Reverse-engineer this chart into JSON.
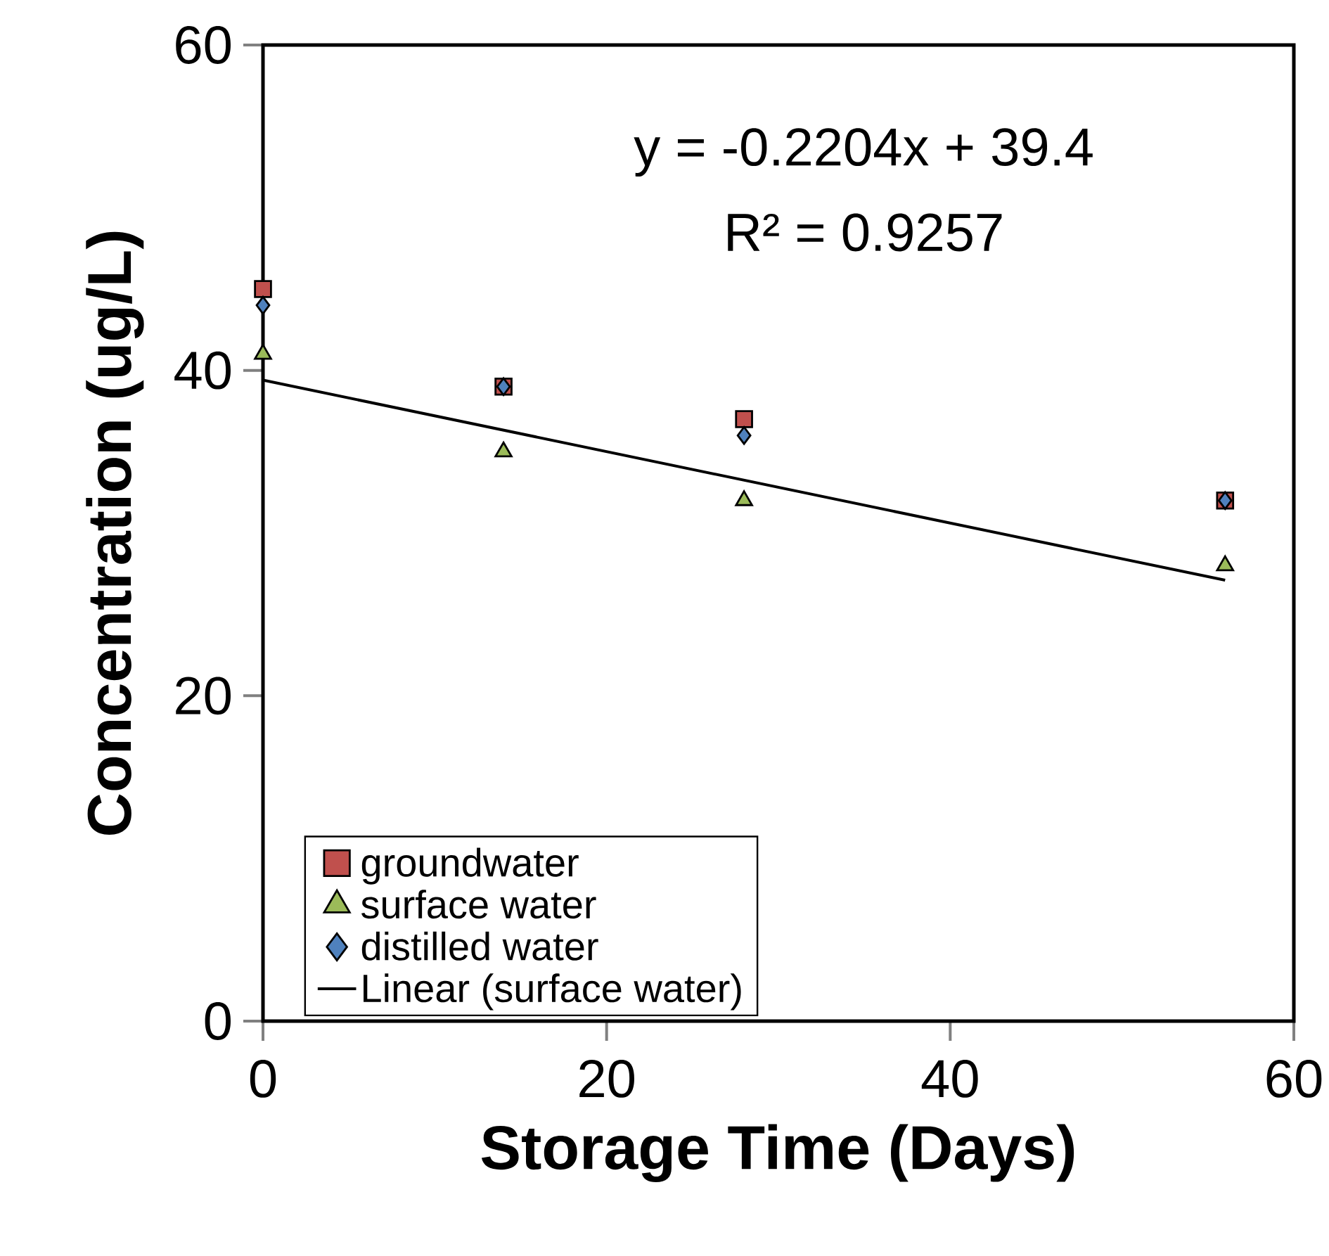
{
  "chart_data": {
    "type": "scatter",
    "xlabel": "Storage Time (Days)",
    "ylabel": "Concentration  (ug/L)",
    "x": [
      0,
      14,
      28,
      56
    ],
    "series": [
      {
        "name": "groundwater",
        "color": "#c0504d",
        "marker": "square",
        "values": [
          45,
          39,
          37,
          32
        ]
      },
      {
        "name": "surface water",
        "color": "#9bbb59",
        "marker": "triangle",
        "values": [
          41,
          35,
          32,
          28
        ]
      },
      {
        "name": "distilled water",
        "color": "#4f81bd",
        "marker": "diamond",
        "values": [
          44,
          39,
          36,
          32
        ]
      },
      {
        "name": "Linear (surface water)",
        "type": "line",
        "color": "#000000",
        "marker": "none",
        "line_style": "solid",
        "x": [
          0,
          56
        ],
        "values": [
          39.4,
          27.1
        ]
      }
    ],
    "annotations": [
      "y = -0.2204x + 39.4",
      "R² = 0.9257"
    ],
    "xlim": [
      0,
      60
    ],
    "xticks": [
      0,
      20,
      40,
      60
    ],
    "ylim": [
      0,
      60
    ],
    "yticks": [
      0,
      20,
      40,
      60
    ],
    "grid": false,
    "legend": "bottom left"
  }
}
